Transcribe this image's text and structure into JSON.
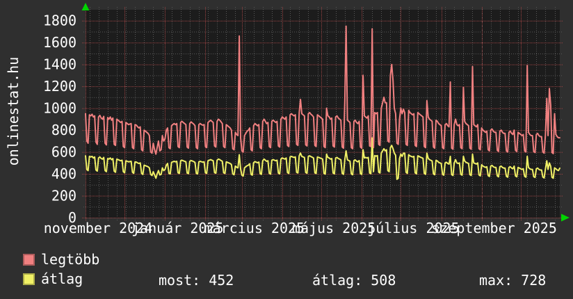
{
  "brand": "onlinestat.hu",
  "chart_data": {
    "type": "line",
    "title": "",
    "xlabel": "",
    "ylabel": "",
    "ylim": [
      0,
      1900
    ],
    "y_tick_step": 200,
    "y_tick_labels": [
      "0",
      "200",
      "400",
      "600",
      "800",
      "1000",
      "1200",
      "1400",
      "1600",
      "1800"
    ],
    "grid": true,
    "legend_position": "bottom-left",
    "days": 365,
    "month_start_days": [
      0,
      30,
      61,
      92,
      120,
      151,
      181,
      212,
      242,
      273,
      304,
      334
    ],
    "x_tick_labels": [
      {
        "label": "november 2024",
        "day": 0
      },
      {
        "label": "január 2025",
        "day": 61
      },
      {
        "label": "március 2025",
        "day": 120
      },
      {
        "label": "május 2025",
        "day": 181
      },
      {
        "label": "július 2025",
        "day": 242
      },
      {
        "label": "szeptember 2025",
        "day": 304
      }
    ],
    "series": [
      {
        "name": "legtöbb",
        "color": "#f08080",
        "values": [
          950,
          700,
          680,
          940,
          930,
          945,
          920,
          930,
          690,
          670,
          920,
          935,
          910,
          900,
          925,
          680,
          665,
          915,
          900,
          920,
          890,
          910,
          670,
          660,
          900,
          890,
          880,
          870,
          880,
          650,
          640,
          870,
          860,
          850,
          855,
          860,
          640,
          630,
          850,
          845,
          830,
          820,
          830,
          620,
          610,
          800,
          790,
          780,
          770,
          750,
          600,
          590,
          680,
          620,
          580,
          640,
          700,
          610,
          620,
          750,
          700,
          720,
          800,
          820,
          640,
          630,
          840,
          850,
          860,
          850,
          860,
          650,
          640,
          870,
          880,
          870,
          860,
          850,
          645,
          635,
          860,
          875,
          865,
          855,
          840,
          640,
          630,
          850,
          860,
          850,
          845,
          850,
          650,
          640,
          870,
          880,
          890,
          880,
          870,
          655,
          645,
          880,
          900,
          890,
          875,
          860,
          650,
          640,
          850,
          840,
          830,
          820,
          800,
          630,
          620,
          780,
          760,
          750,
          1660,
          730,
          610,
          600,
          750,
          770,
          790,
          800,
          820,
          620,
          610,
          840,
          860,
          850,
          840,
          850,
          640,
          630,
          880,
          900,
          880,
          860,
          870,
          650,
          640,
          880,
          890,
          880,
          870,
          880,
          655,
          645,
          900,
          920,
          910,
          900,
          920,
          660,
          650,
          940,
          950,
          940,
          930,
          940,
          670,
          660,
          960,
          1080,
          950,
          940,
          930,
          665,
          655,
          950,
          960,
          945,
          935,
          920,
          660,
          650,
          940,
          930,
          920,
          910,
          900,
          650,
          640,
          1000,
          930,
          920,
          900,
          910,
          655,
          645,
          920,
          930,
          910,
          900,
          890,
          645,
          635,
          1075,
          1750,
          890,
          880,
          870,
          640,
          630,
          880,
          890,
          870,
          860,
          880,
          645,
          635,
          1300,
          930,
          920,
          910,
          930,
          655,
          650,
          1725,
          640,
          960,
          950,
          960,
          670,
          660,
          1000,
          1050,
          1100,
          1050,
          1050,
          700,
          690,
          1300,
          1400,
          1250,
          1000,
          950,
          680,
          670,
          900,
          1000,
          950,
          990,
          960,
          670,
          660,
          980,
          960,
          950,
          940,
          950,
          660,
          650,
          960,
          950,
          940,
          930,
          920,
          650,
          640,
          1070,
          920,
          900,
          890,
          880,
          645,
          635,
          890,
          880,
          860,
          850,
          840,
          640,
          630,
          850,
          860,
          840,
          830,
          1240,
          635,
          625,
          850,
          900,
          850,
          840,
          850,
          640,
          630,
          1190,
          880,
          860,
          850,
          840,
          635,
          625,
          1380,
          850,
          840,
          830,
          850,
          630,
          620,
          820,
          800,
          790,
          780,
          790,
          620,
          610,
          800,
          810,
          790,
          780,
          780,
          615,
          605,
          790,
          800,
          780,
          770,
          770,
          610,
          600,
          780,
          790,
          770,
          760,
          800,
          615,
          605,
          780,
          770,
          760,
          750,
          760,
          610,
          600,
          1390,
          780,
          760,
          750,
          750,
          605,
          595,
          760,
          770,
          750,
          740,
          740,
          600,
          590,
          760,
          1090,
          750,
          1180,
          1030,
          595,
          585,
          950,
          760,
          740,
          730,
          730
        ]
      },
      {
        "name": "átlag",
        "color": "#f0f066",
        "values": [
          565,
          440,
          430,
          560,
          555,
          560,
          545,
          555,
          435,
          425,
          545,
          555,
          540,
          535,
          550,
          430,
          420,
          540,
          535,
          545,
          530,
          540,
          425,
          415,
          535,
          530,
          525,
          520,
          525,
          420,
          410,
          520,
          515,
          510,
          512,
          515,
          415,
          405,
          510,
          508,
          500,
          495,
          500,
          405,
          395,
          480,
          475,
          470,
          465,
          455,
          395,
          385,
          420,
          390,
          360,
          400,
          430,
          390,
          395,
          455,
          430,
          440,
          480,
          495,
          405,
          400,
          505,
          510,
          515,
          510,
          515,
          410,
          405,
          520,
          525,
          520,
          515,
          510,
          408,
          402,
          515,
          522,
          518,
          512,
          505,
          405,
          400,
          510,
          515,
          510,
          508,
          510,
          410,
          405,
          520,
          525,
          530,
          525,
          520,
          412,
          406,
          525,
          535,
          530,
          522,
          515,
          410,
          404,
          510,
          505,
          500,
          495,
          485,
          400,
          392,
          472,
          460,
          455,
          575,
          445,
          388,
          380,
          455,
          465,
          475,
          480,
          492,
          395,
          388,
          502,
          512,
          507,
          502,
          508,
          402,
          396,
          520,
          535,
          525,
          515,
          520,
          405,
          398,
          525,
          530,
          525,
          520,
          525,
          408,
          400,
          535,
          545,
          540,
          535,
          545,
          412,
          404,
          555,
          560,
          555,
          550,
          555,
          415,
          408,
          565,
          590,
          560,
          555,
          550,
          413,
          406,
          560,
          565,
          558,
          552,
          545,
          410,
          403,
          555,
          550,
          545,
          540,
          535,
          405,
          398,
          580,
          550,
          545,
          535,
          540,
          408,
          400,
          545,
          550,
          540,
          535,
          528,
          404,
          396,
          533,
          610,
          528,
          522,
          516,
          400,
          392,
          522,
          528,
          516,
          510,
          522,
          402,
          395,
          620,
          545,
          550,
          545,
          550,
          408,
          402,
          728,
          420,
          567,
          562,
          567,
          415,
          408,
          590,
          610,
          630,
          610,
          620,
          430,
          420,
          640,
          660,
          630,
          590,
          570,
          350,
          360,
          540,
          580,
          560,
          590,
          590,
          415,
          405,
          575,
          565,
          560,
          555,
          560,
          410,
          400,
          565,
          560,
          552,
          548,
          542,
          405,
          396,
          590,
          542,
          530,
          524,
          518,
          400,
          392,
          524,
          518,
          506,
          500,
          495,
          396,
          388,
          500,
          506,
          495,
          489,
          560,
          393,
          385,
          500,
          530,
          500,
          495,
          500,
          396,
          388,
          560,
          518,
          506,
          500,
          495,
          393,
          385,
          580,
          500,
          495,
          490,
          500,
          390,
          382,
          483,
          471,
          465,
          459,
          465,
          384,
          376,
          471,
          477,
          465,
          459,
          459,
          381,
          373,
          465,
          471,
          459,
          453,
          453,
          378,
          370,
          459,
          465,
          453,
          447,
          471,
          381,
          373,
          459,
          453,
          447,
          441,
          447,
          378,
          370,
          560,
          459,
          447,
          441,
          441,
          375,
          367,
          447,
          453,
          441,
          435,
          435,
          371,
          363,
          447,
          520,
          441,
          500,
          470,
          368,
          360,
          455,
          447,
          435,
          430,
          452
        ]
      }
    ],
    "colors": {
      "outer_bg": "#2f2f2f",
      "plot_bg": "#1c1c1c",
      "grid_minor": "#585858",
      "grid_major": "#9e4444",
      "axis_arrow": "#00d400",
      "text": "#ffffff"
    }
  },
  "legend": [
    {
      "label": "legtöbb",
      "color": "#f08080"
    },
    {
      "label": "átlag",
      "color": "#f0f066"
    }
  ],
  "stats": {
    "most_label": "most:",
    "most_value": "452",
    "atlag_label": "átlag:",
    "atlag_value": "508",
    "max_label": "max:",
    "max_value": "728"
  }
}
